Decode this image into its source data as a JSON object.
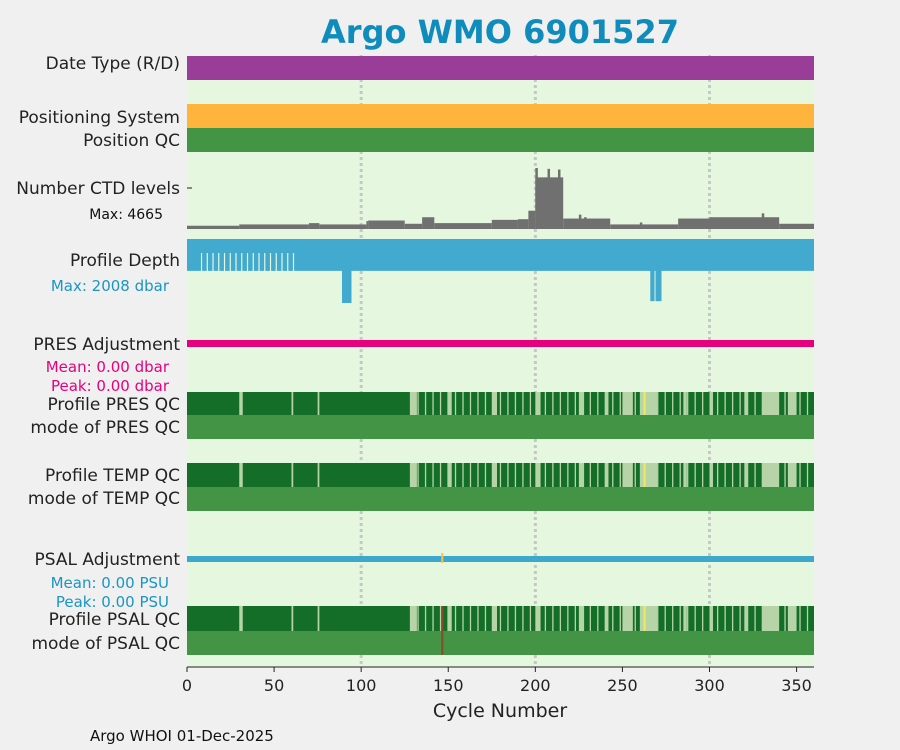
{
  "chart_data": {
    "type": "timeline",
    "title": "Argo WMO 6901527",
    "xlabel": "Cycle Number",
    "xlim": [
      0,
      360
    ],
    "xticks": [
      "0",
      "50",
      "100",
      "150",
      "200",
      "250",
      "300",
      "350"
    ],
    "footer": "Argo WHOI 01-Dec-2025",
    "rows": {
      "date_type": "Date Type (R/D)",
      "positioning_system": "Positioning System",
      "position_qc": "Position QC",
      "ctd_levels": "Number CTD levels",
      "ctd_max": "Max: 4665",
      "profile_depth": "Profile Depth",
      "depth_max": "Max: 2008 dbar",
      "pres_adjustment": "PRES Adjustment",
      "pres_mean": "Mean: 0.00 dbar",
      "pres_peak": "Peak: 0.00 dbar",
      "profile_pres_qc": "Profile PRES QC",
      "mode_pres_qc": "mode of PRES QC",
      "profile_temp_qc": "Profile TEMP QC",
      "mode_temp_qc": "mode of TEMP QC",
      "psal_adjustment": "PSAL Adjustment",
      "psal_mean": "Mean: 0.00 PSU",
      "psal_peak": "Peak: 0.00 PSU",
      "profile_psal_qc": "Profile PSAL QC",
      "mode_psal_qc": "mode of PSAL QC"
    },
    "ctd_levels_max": 4665,
    "ctd_levels_segments": [
      [
        0,
        30,
        250
      ],
      [
        30,
        70,
        350
      ],
      [
        70,
        76,
        450
      ],
      [
        76,
        103,
        350
      ],
      [
        103,
        104,
        600
      ],
      [
        104,
        125,
        650
      ],
      [
        125,
        135,
        400
      ],
      [
        135,
        142,
        900
      ],
      [
        142,
        175,
        450
      ],
      [
        175,
        190,
        700
      ],
      [
        190,
        196,
        750
      ],
      [
        196,
        200,
        1400
      ],
      [
        200,
        216,
        3950
      ],
      [
        216,
        243,
        800
      ],
      [
        243,
        282,
        350
      ],
      [
        282,
        300,
        800
      ],
      [
        300,
        340,
        900
      ],
      [
        340,
        360,
        400
      ]
    ],
    "ctd_levels_spikes": [
      [
        200,
        4665
      ],
      [
        207,
        4600
      ],
      [
        213,
        4550
      ],
      [
        225,
        1100
      ],
      [
        228,
        900
      ],
      [
        260,
        500
      ],
      [
        330,
        1200
      ]
    ],
    "profile_depth_max": 2008,
    "profile_depth_segments": [
      [
        0,
        62,
        1000
      ],
      [
        62,
        360,
        1000
      ]
    ],
    "profile_depth_spikes": [
      [
        89,
        2008
      ],
      [
        90,
        2008
      ],
      [
        91,
        2008
      ],
      [
        92,
        2008
      ],
      [
        93,
        2008
      ],
      [
        266,
        1950
      ],
      [
        267,
        1950
      ],
      [
        269,
        1950
      ],
      [
        270,
        1950
      ],
      [
        271,
        1950
      ]
    ],
    "qc_good_dark_ranges": [
      [
        0,
        30
      ],
      [
        32,
        60
      ],
      [
        61,
        75
      ],
      [
        76,
        128
      ],
      [
        132,
        150
      ],
      [
        152,
        175
      ],
      [
        178,
        200
      ],
      [
        203,
        225
      ],
      [
        228,
        240
      ],
      [
        242,
        250
      ],
      [
        256,
        260
      ],
      [
        270,
        285
      ],
      [
        287,
        300
      ],
      [
        302,
        320
      ],
      [
        322,
        330
      ],
      [
        340,
        345
      ],
      [
        350,
        360
      ]
    ],
    "qc_flag_cycle": 262,
    "psal_adjustment_flag_cycle": 146,
    "colors": {
      "panel_bg": "#e6f7e0",
      "date_type": "#993d99",
      "positioning": "#ffb43d",
      "qc_good": "#439444",
      "qc_dark": "#146e27",
      "qc_light": "#b6d4a8",
      "ctd": "#707070",
      "depth": "#42a9cf",
      "pres_adj": "#e6007e",
      "psal_adj": "#3ea8cc",
      "title": "#0f8cbb"
    }
  }
}
